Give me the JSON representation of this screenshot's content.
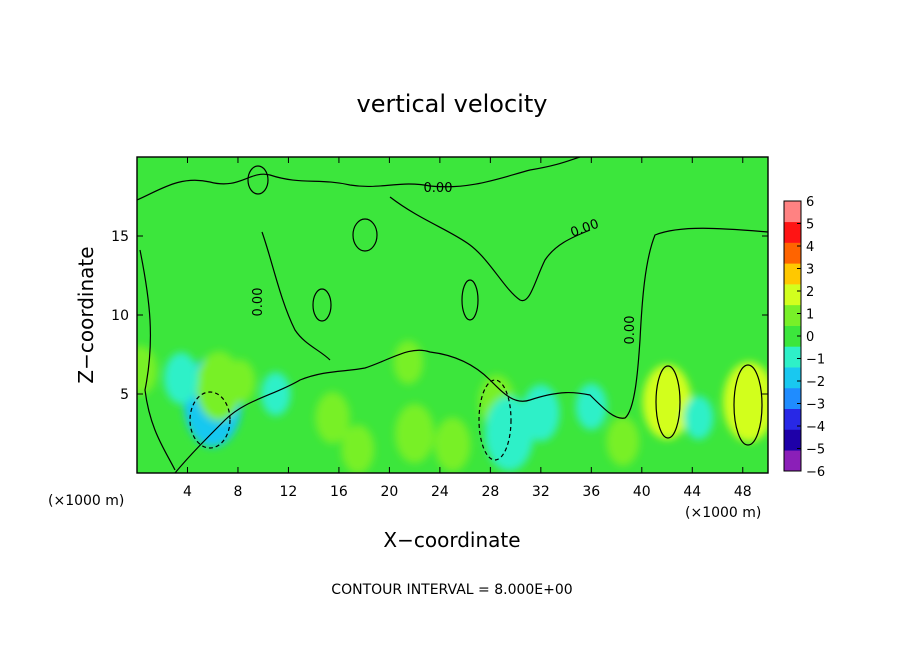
{
  "chart_data": {
    "type": "heatmap",
    "title": "vertical velocity",
    "xlabel": "X−coordinate",
    "ylabel": "Z−coordinate",
    "x_units": "(×1000 m)",
    "y_units": "(×1000 m)",
    "xlim": [
      0,
      50
    ],
    "ylim": [
      0,
      20
    ],
    "x_ticks": [
      4,
      8,
      12,
      16,
      20,
      24,
      28,
      32,
      36,
      40,
      44,
      48
    ],
    "y_ticks": [
      5,
      10,
      15
    ],
    "colorbar": {
      "ticks": [
        6,
        5,
        4,
        3,
        2,
        1,
        0,
        -1,
        -2,
        -3,
        -4,
        -5,
        -6
      ],
      "tick_labels": [
        "6",
        "5",
        "4",
        "3",
        "2",
        "1",
        "0",
        "−1",
        "−2",
        "−3",
        "−4",
        "−5",
        "−6"
      ],
      "range": [
        -6,
        6
      ],
      "colors": [
        "#8b1fb8",
        "#1e00a8",
        "#2828e6",
        "#1f8cff",
        "#19c8f0",
        "#2ef0c8",
        "#3ce63c",
        "#78f028",
        "#d2ff1e",
        "#ffc800",
        "#ff6400",
        "#ff1414",
        "#ff8282"
      ]
    },
    "contour_labels": [
      "0.00",
      "0.00",
      "0.00",
      "0.00"
    ],
    "contour_interval_text": "CONTOUR INTERVAL = 8.000E+00",
    "features": [
      {
        "x": 6,
        "z": 4.5,
        "w": -12
      },
      {
        "x": 6.5,
        "z": 5.5,
        "w": 8
      },
      {
        "x": 8.2,
        "z": 5.8,
        "w": 3
      },
      {
        "x": 15.5,
        "z": 3.5,
        "w": 4.5
      },
      {
        "x": 17.5,
        "z": 1.5,
        "w": 4
      },
      {
        "x": 21.5,
        "z": 7,
        "w": 3
      },
      {
        "x": 22,
        "z": 2.5,
        "w": 6
      },
      {
        "x": 25,
        "z": 1.8,
        "w": 5
      },
      {
        "x": 28.5,
        "z": 4.5,
        "w": 5
      },
      {
        "x": 29.5,
        "z": 2.5,
        "w": -9
      },
      {
        "x": 32,
        "z": 3.8,
        "w": -5.5
      },
      {
        "x": 36,
        "z": 4.2,
        "w": -3.5
      },
      {
        "x": 38.5,
        "z": 2,
        "w": 4
      },
      {
        "x": 42,
        "z": 4.5,
        "w": 9
      },
      {
        "x": 44.5,
        "z": 3.5,
        "w": -3
      },
      {
        "x": 48.5,
        "z": 4.5,
        "w": 10
      },
      {
        "x": 0.3,
        "z": 6.5,
        "w": 4
      },
      {
        "x": 3.5,
        "z": 6,
        "w": -4.5
      },
      {
        "x": 11,
        "z": 5,
        "w": -3
      }
    ]
  }
}
